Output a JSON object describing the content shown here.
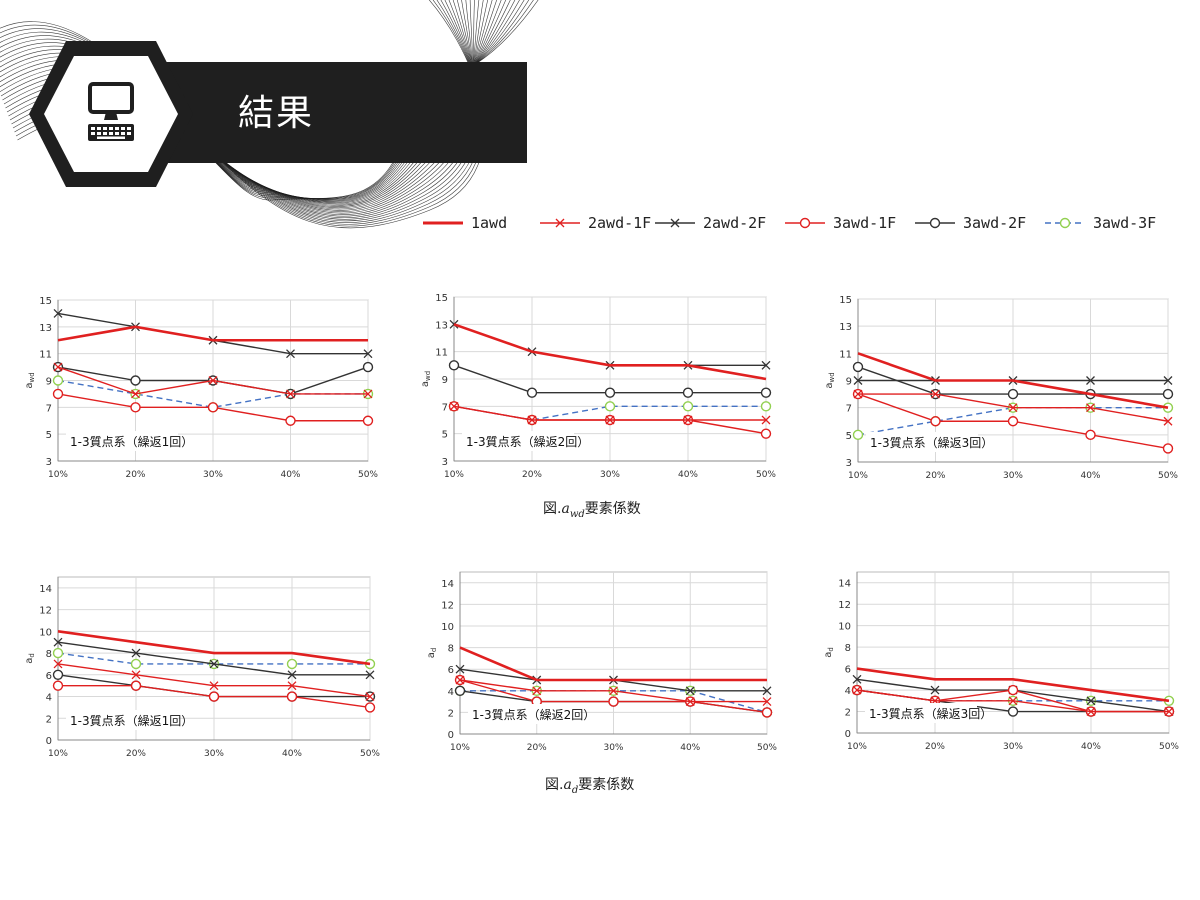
{
  "header": {
    "title": "結果",
    "icon": "computer-icon"
  },
  "legend": [
    {
      "name": "1awd",
      "color": "#e02020",
      "dash": "",
      "marker": "none"
    },
    {
      "name": "2awd-1F",
      "color": "#e02020",
      "dash": "",
      "marker": "x"
    },
    {
      "name": "2awd-2F",
      "color": "#333333",
      "dash": "",
      "marker": "x"
    },
    {
      "name": "3awd-1F",
      "color": "#e02020",
      "dash": "",
      "marker": "circle"
    },
    {
      "name": "3awd-2F",
      "color": "#333333",
      "dash": "",
      "marker": "circle"
    },
    {
      "name": "3awd-3F",
      "color": "#4472c4",
      "dash": "6,4",
      "marker": "circle-green"
    }
  ],
  "captions": {
    "awd_prefix": "図.",
    "awd_symbol": "a",
    "awd_sub": "wd",
    "awd_suffix": "要素係数",
    "ad_prefix": "図.",
    "ad_symbol": "a",
    "ad_sub": "d",
    "ad_suffix": "要素係数"
  },
  "chart_data": [
    {
      "type": "line",
      "ylabel": "awd",
      "ylim": [
        3,
        15
      ],
      "yticks": [
        3,
        5,
        7,
        9,
        11,
        13,
        15
      ],
      "annotation": "1-3質点系（繰返1回）",
      "categories": [
        "10%",
        "20%",
        "30%",
        "40%",
        "50%"
      ],
      "series": [
        {
          "name": "1awd",
          "values": [
            12,
            13,
            12,
            12,
            12
          ]
        },
        {
          "name": "2awd-1F",
          "values": [
            10,
            8,
            9,
            8,
            8
          ]
        },
        {
          "name": "2awd-2F",
          "values": [
            14,
            13,
            12,
            11,
            11
          ]
        },
        {
          "name": "3awd-1F",
          "values": [
            8,
            7,
            7,
            6,
            6
          ]
        },
        {
          "name": "3awd-2F",
          "values": [
            10,
            9,
            9,
            8,
            10
          ]
        },
        {
          "name": "3awd-3F",
          "values": [
            9,
            8,
            7,
            8,
            8
          ]
        }
      ]
    },
    {
      "type": "line",
      "ylabel": "awd",
      "ylim": [
        3,
        15
      ],
      "yticks": [
        3,
        5,
        7,
        9,
        11,
        13,
        15
      ],
      "annotation": "1-3質点系（繰返2回）",
      "categories": [
        "10%",
        "20%",
        "30%",
        "40%",
        "50%"
      ],
      "series": [
        {
          "name": "1awd",
          "values": [
            13,
            11,
            10,
            10,
            9
          ]
        },
        {
          "name": "2awd-1F",
          "values": [
            7,
            6,
            6,
            6,
            6
          ]
        },
        {
          "name": "2awd-2F",
          "values": [
            13,
            11,
            10,
            10,
            10
          ]
        },
        {
          "name": "3awd-1F",
          "values": [
            7,
            6,
            6,
            6,
            5
          ]
        },
        {
          "name": "3awd-2F",
          "values": [
            10,
            8,
            8,
            8,
            8
          ]
        },
        {
          "name": "3awd-3F",
          "values": [
            7,
            6,
            7,
            7,
            7
          ]
        }
      ]
    },
    {
      "type": "line",
      "ylabel": "awd",
      "ylim": [
        3,
        15
      ],
      "yticks": [
        3,
        5,
        7,
        9,
        11,
        13,
        15
      ],
      "annotation": "1-3質点系（繰返3回）",
      "categories": [
        "10%",
        "20%",
        "30%",
        "40%",
        "50%"
      ],
      "series": [
        {
          "name": "1awd",
          "values": [
            11,
            9,
            9,
            8,
            7
          ]
        },
        {
          "name": "2awd-1F",
          "values": [
            8,
            8,
            7,
            7,
            6
          ]
        },
        {
          "name": "2awd-2F",
          "values": [
            9,
            9,
            9,
            9,
            9
          ]
        },
        {
          "name": "3awd-1F",
          "values": [
            8,
            6,
            6,
            5,
            4
          ]
        },
        {
          "name": "3awd-2F",
          "values": [
            10,
            8,
            8,
            8,
            8
          ]
        },
        {
          "name": "3awd-3F",
          "values": [
            5,
            6,
            7,
            7,
            7
          ]
        }
      ]
    },
    {
      "type": "line",
      "ylabel": "ad",
      "ylim": [
        0,
        15
      ],
      "yticks": [
        0,
        2,
        4,
        6,
        8,
        10,
        12,
        14
      ],
      "annotation": "1-3質点系（繰返1回）",
      "categories": [
        "10%",
        "20%",
        "30%",
        "40%",
        "50%"
      ],
      "series": [
        {
          "name": "1awd",
          "values": [
            10,
            9,
            8,
            8,
            7
          ]
        },
        {
          "name": "2awd-1F",
          "values": [
            7,
            6,
            5,
            5,
            4
          ]
        },
        {
          "name": "2awd-2F",
          "values": [
            9,
            8,
            7,
            6,
            6
          ]
        },
        {
          "name": "3awd-1F",
          "values": [
            5,
            5,
            4,
            4,
            3
          ]
        },
        {
          "name": "3awd-2F",
          "values": [
            6,
            5,
            4,
            4,
            4
          ]
        },
        {
          "name": "3awd-3F",
          "values": [
            8,
            7,
            7,
            7,
            7
          ]
        }
      ]
    },
    {
      "type": "line",
      "ylabel": "ad",
      "ylim": [
        0,
        15
      ],
      "yticks": [
        0,
        2,
        4,
        6,
        8,
        10,
        12,
        14
      ],
      "annotation": "1-3質点系（繰返2回）",
      "categories": [
        "10%",
        "20%",
        "30%",
        "40%",
        "50%"
      ],
      "series": [
        {
          "name": "1awd",
          "values": [
            8,
            5,
            5,
            5,
            5
          ]
        },
        {
          "name": "2awd-1F",
          "values": [
            5,
            4,
            4,
            3,
            3
          ]
        },
        {
          "name": "2awd-2F",
          "values": [
            6,
            5,
            5,
            4,
            4
          ]
        },
        {
          "name": "3awd-1F",
          "values": [
            5,
            3,
            3,
            3,
            2
          ]
        },
        {
          "name": "3awd-2F",
          "values": [
            4,
            3,
            3,
            3,
            2
          ]
        },
        {
          "name": "3awd-3F",
          "values": [
            4,
            4,
            4,
            4,
            2
          ]
        }
      ]
    },
    {
      "type": "line",
      "ylabel": "ad",
      "ylim": [
        0,
        15
      ],
      "yticks": [
        0,
        2,
        4,
        6,
        8,
        10,
        12,
        14
      ],
      "annotation": "1-3質点系（繰返3回）",
      "categories": [
        "10%",
        "20%",
        "30%",
        "40%",
        "50%"
      ],
      "series": [
        {
          "name": "1awd",
          "values": [
            6,
            5,
            5,
            4,
            3
          ]
        },
        {
          "name": "2awd-1F",
          "values": [
            4,
            3,
            3,
            2,
            2
          ]
        },
        {
          "name": "2awd-2F",
          "values": [
            5,
            4,
            4,
            3,
            2
          ]
        },
        {
          "name": "3awd-1F",
          "values": [
            4,
            3,
            4,
            2,
            2
          ]
        },
        {
          "name": "3awd-2F",
          "values": [
            4,
            3,
            2,
            2,
            2
          ]
        },
        {
          "name": "3awd-3F",
          "values": [
            4,
            3,
            3,
            3,
            3
          ]
        }
      ]
    }
  ]
}
